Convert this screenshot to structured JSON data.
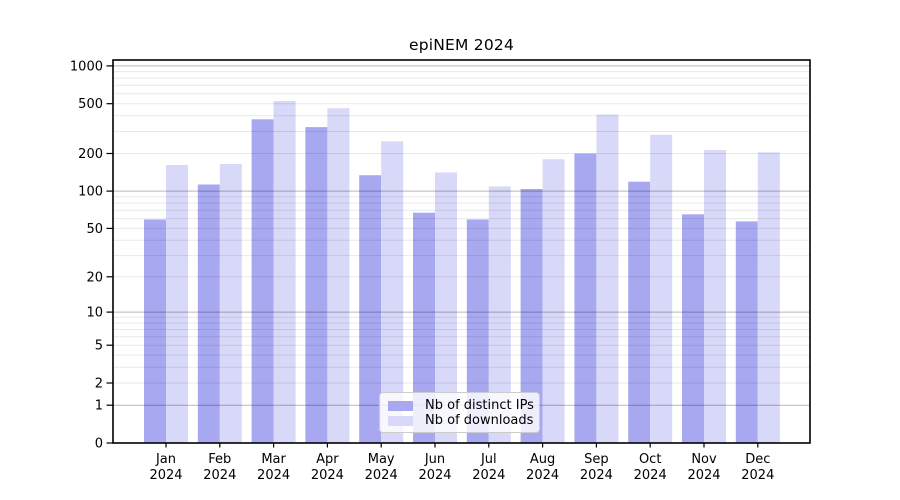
{
  "title": "epiNEM 2024",
  "chart_data": {
    "type": "bar",
    "title": "epiNEM 2024",
    "xlabel": "",
    "ylabel": "",
    "year": "2024",
    "categories": [
      "Jan",
      "Feb",
      "Mar",
      "Apr",
      "May",
      "Jun",
      "Jul",
      "Aug",
      "Sep",
      "Oct",
      "Nov",
      "Dec"
    ],
    "series": [
      {
        "name": "Nb of distinct IPs",
        "color": "#a8a8f0",
        "values": [
          59,
          113,
          375,
          325,
          134,
          67,
          59,
          104,
          200,
          119,
          65,
          57
        ]
      },
      {
        "name": "Nb of downloads",
        "color": "#d8d8f8",
        "values": [
          162,
          165,
          525,
          460,
          250,
          141,
          109,
          180,
          409,
          282,
          213,
          204
        ]
      }
    ],
    "y_axis": {
      "scale": "log-like, position proportional to log10(value+1)",
      "tick_values": [
        1000,
        500,
        200,
        100,
        50,
        20,
        10,
        5,
        2,
        1,
        0
      ],
      "range_top": 1114,
      "major_gridline_values": [
        1,
        10,
        100,
        1000
      ],
      "minor_gridline_decades": [
        1,
        10,
        100
      ]
    },
    "grid": {
      "enabled": true
    },
    "legend": {
      "position": "bottom-center-inside",
      "entries": [
        "Nb of distinct IPs",
        "Nb of downloads"
      ]
    }
  },
  "colors": {
    "distinct_ips_bar": "#a8a8f0",
    "downloads_bar": "#d8d8f8",
    "major_grid": "rgba(0,0,0,0.28)",
    "minor_grid": "rgba(0,0,0,0.09)",
    "axis_box": "#000000",
    "background": "#ffffff"
  }
}
